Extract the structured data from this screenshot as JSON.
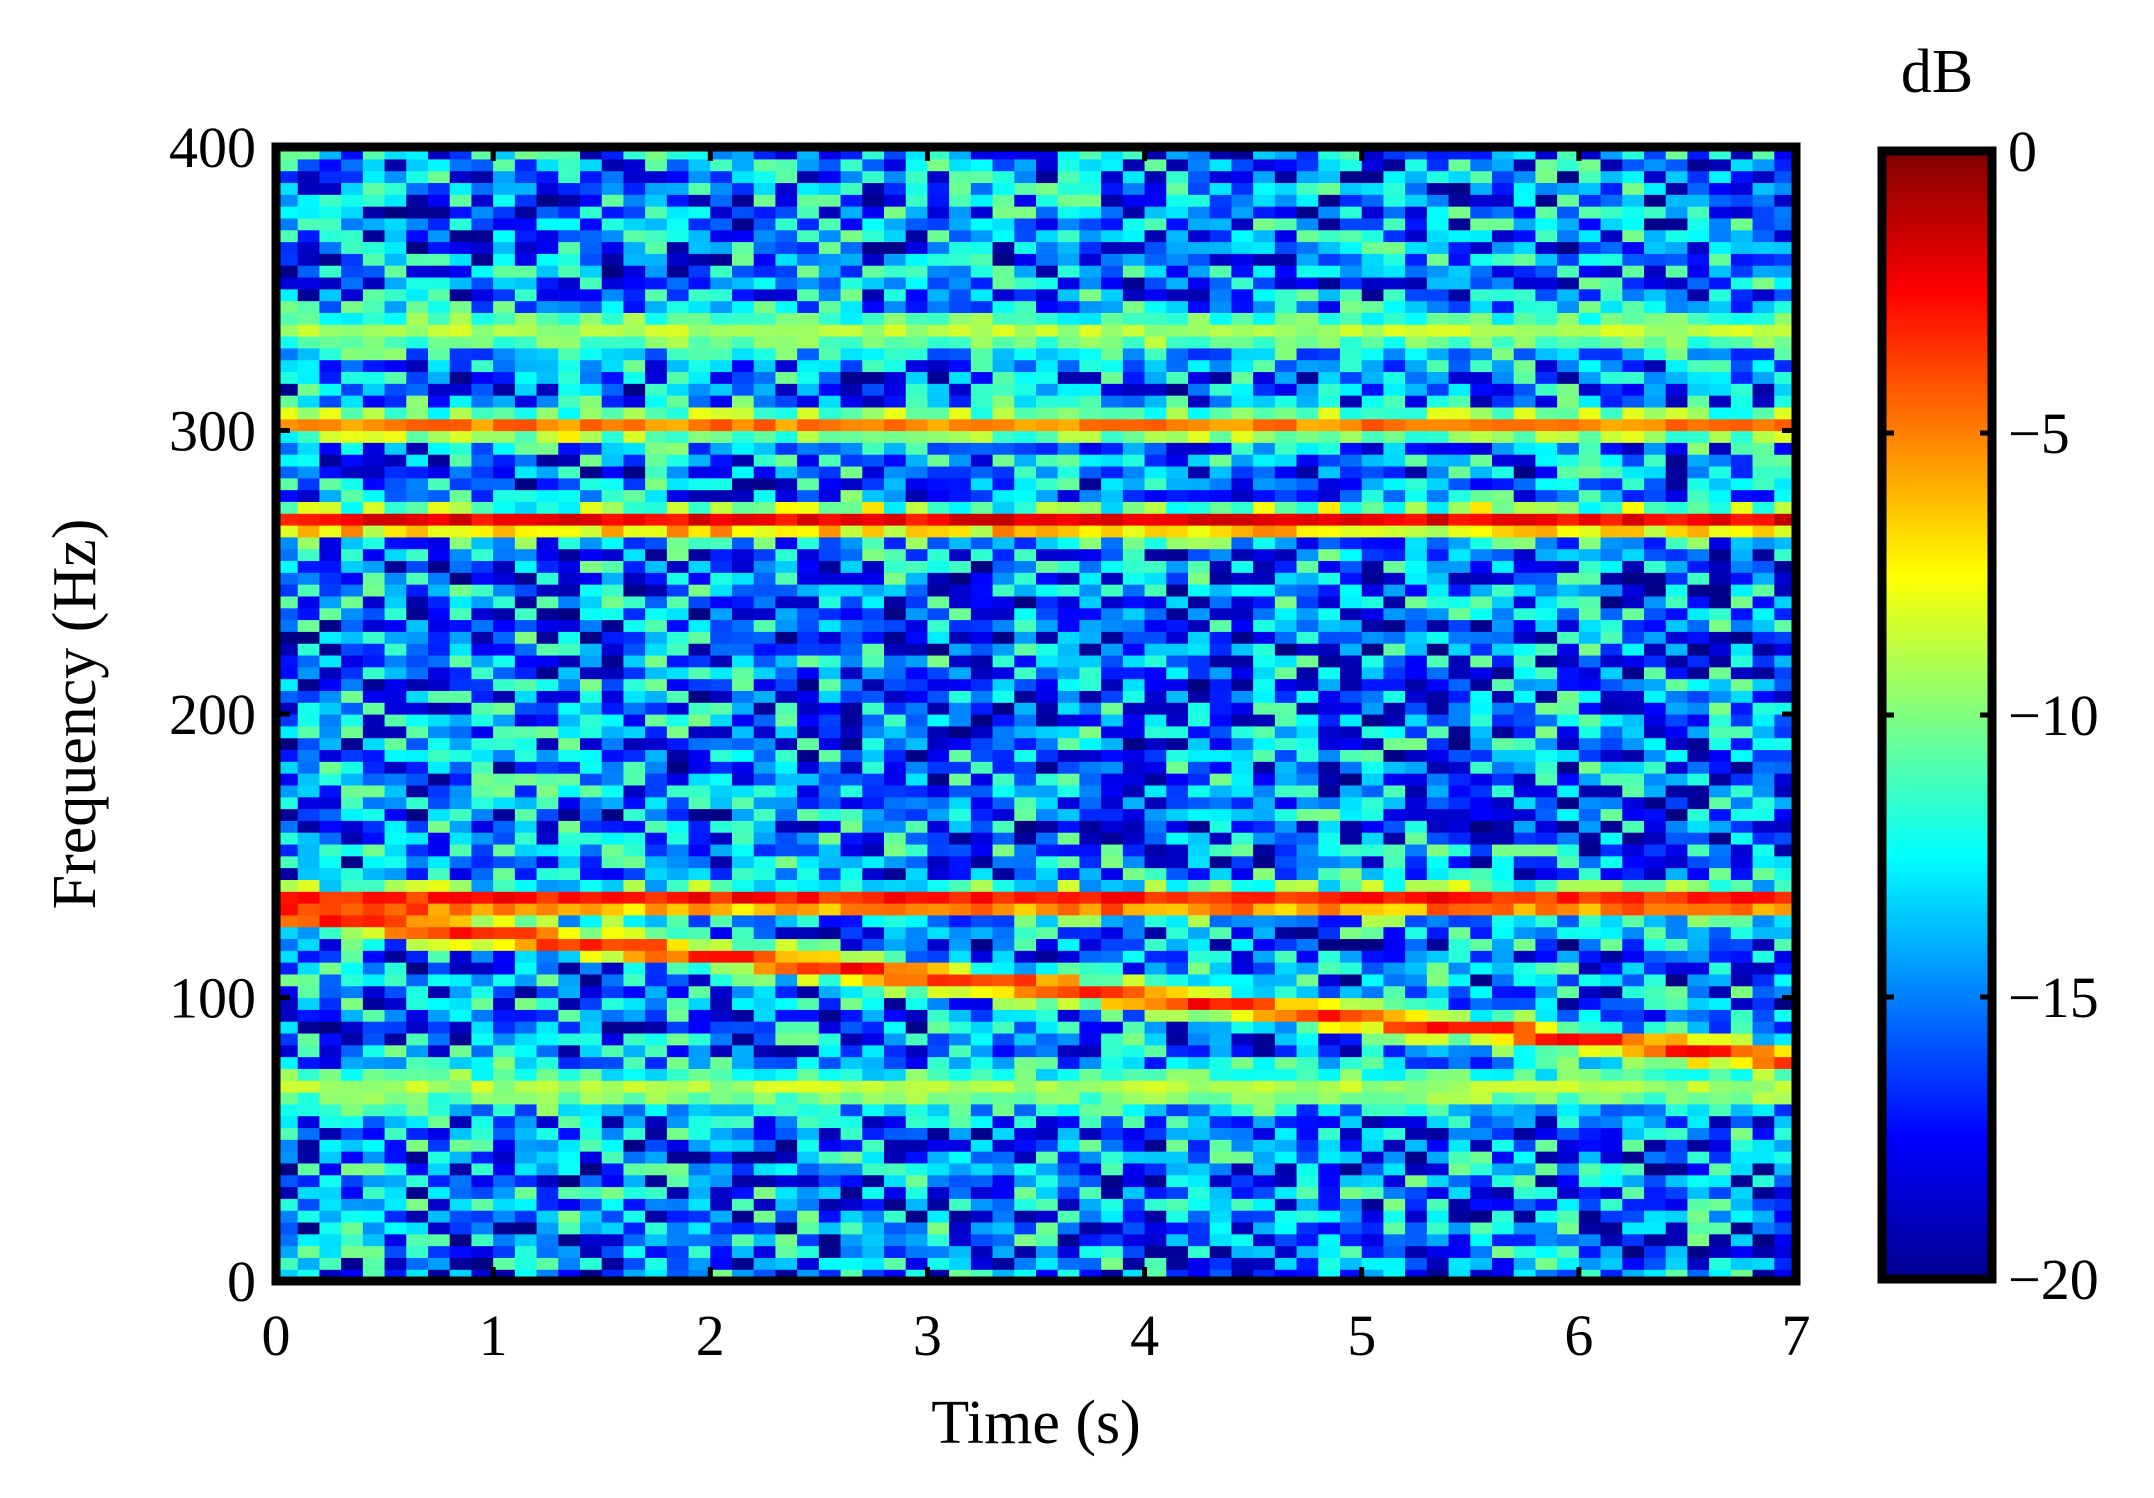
{
  "chart_data": {
    "type": "heatmap",
    "title": "",
    "xlabel": "Time (s)",
    "ylabel": "Frequency (Hz)",
    "xlim": [
      0,
      7
    ],
    "ylim": [
      0,
      400
    ],
    "xticks": [
      "0",
      "1",
      "2",
      "3",
      "4",
      "5",
      "6",
      "7"
    ],
    "yticks": [
      "0",
      "100",
      "200",
      "300",
      "400"
    ],
    "colorbar": {
      "label": "dB",
      "range": [
        -20,
        0
      ],
      "ticks": [
        "0",
        "−5",
        "−10",
        "−15",
        "−20"
      ],
      "colormap": "jet"
    },
    "noise_floor_db": [
      -20,
      -10
    ],
    "bands": [
      {
        "kind": "tonal",
        "freq_hz_start": 268,
        "freq_hz_end": 268,
        "level_db": -2
      },
      {
        "kind": "tonal",
        "freq_hz_start": 302,
        "freq_hz_end": 302,
        "level_db": -5
      },
      {
        "kind": "tonal",
        "freq_hz_start": 134,
        "freq_hz_end": 134,
        "level_db": -2
      },
      {
        "kind": "sweep",
        "freq_hz_start": 130,
        "freq_hz_end": 78,
        "level_db": -3
      },
      {
        "kind": "weak",
        "freq_hz_start": 335,
        "freq_hz_end": 335,
        "level_db": -9
      },
      {
        "kind": "weak",
        "freq_hz_start": 68,
        "freq_hz_end": 68,
        "level_db": -9
      }
    ]
  }
}
